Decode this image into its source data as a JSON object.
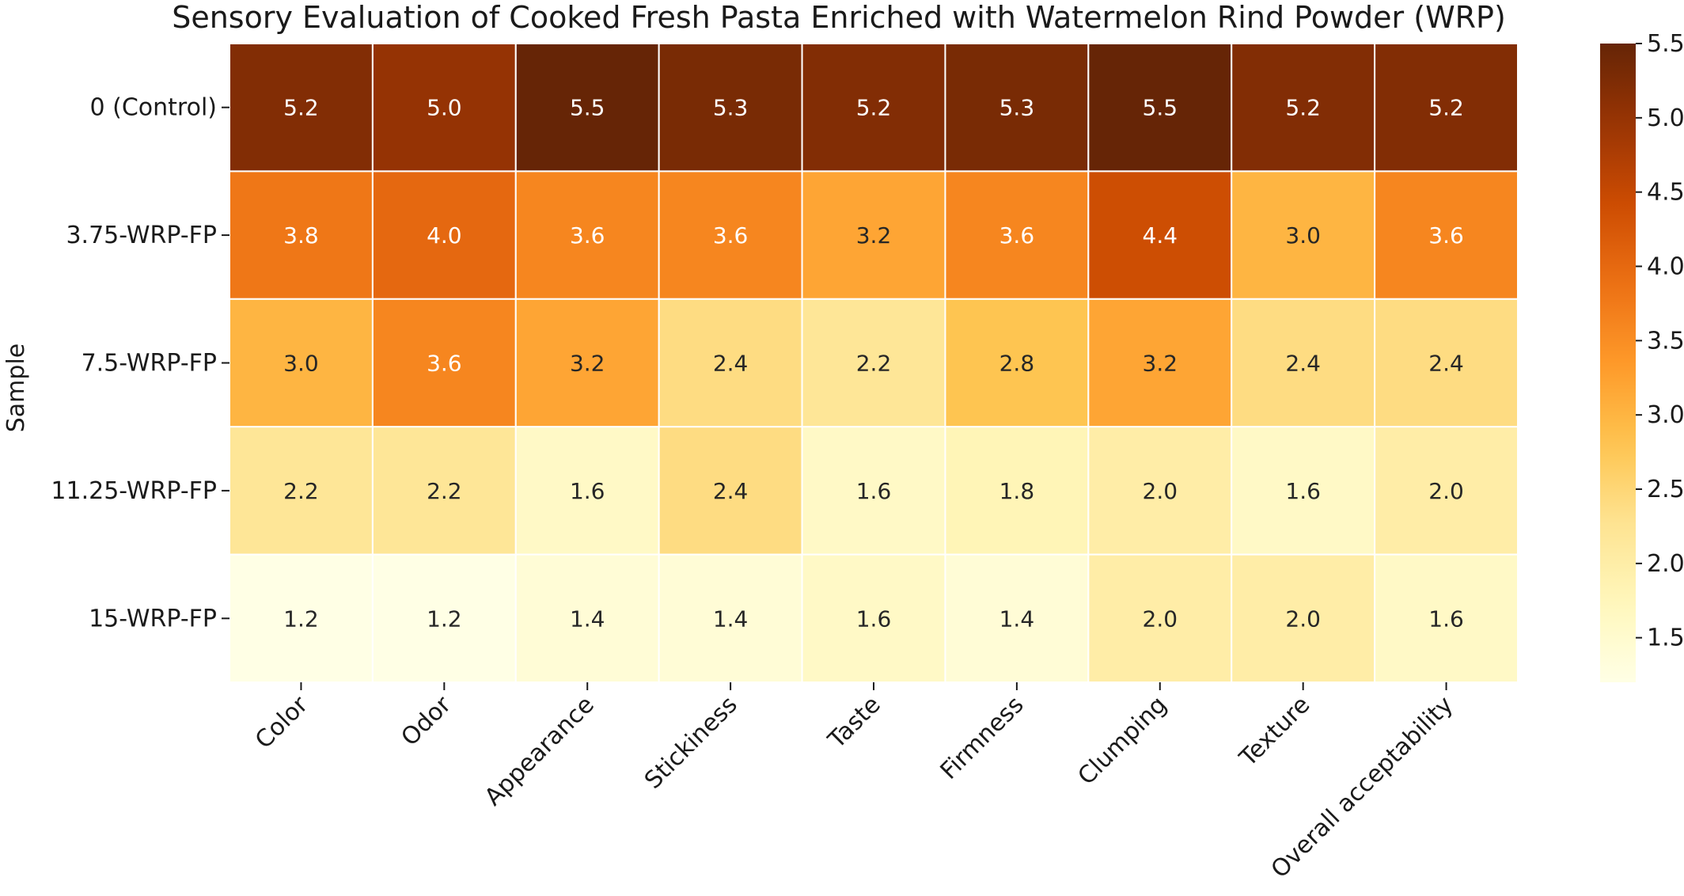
{
  "chart_data": {
    "type": "heatmap",
    "title": "Sensory Evaluation of Cooked Fresh Pasta Enriched with Watermelon Rind Powder (WRP)",
    "ylabel": "Sample",
    "xlabel": "",
    "rows": [
      "0 (Control)",
      "3.75-WRP-FP",
      "7.5-WRP-FP",
      "11.25-WRP-FP",
      "15-WRP-FP"
    ],
    "columns": [
      "Color",
      "Odor",
      "Appearance",
      "Stickiness",
      "Taste",
      "Firmness",
      "Clumping",
      "Texture",
      "Overall acceptability"
    ],
    "values": [
      [
        5.2,
        5.0,
        5.5,
        5.3,
        5.2,
        5.3,
        5.5,
        5.2,
        5.2
      ],
      [
        3.8,
        4.0,
        3.6,
        3.6,
        3.2,
        3.6,
        4.4,
        3.0,
        3.6
      ],
      [
        3.0,
        3.6,
        3.2,
        2.4,
        2.2,
        2.8,
        3.2,
        2.4,
        2.4
      ],
      [
        2.2,
        2.2,
        1.6,
        2.4,
        1.6,
        1.8,
        2.0,
        1.6,
        2.0
      ],
      [
        1.2,
        1.2,
        1.4,
        1.4,
        1.6,
        1.4,
        2.0,
        2.0,
        1.6
      ]
    ],
    "colorbar": {
      "ticks": [
        "1.5",
        "2.0",
        "2.5",
        "3.0",
        "3.5",
        "4.0",
        "4.5",
        "5.0",
        "5.5"
      ],
      "range": [
        1.2,
        5.5
      ]
    },
    "colormap": "YlOrBr"
  }
}
